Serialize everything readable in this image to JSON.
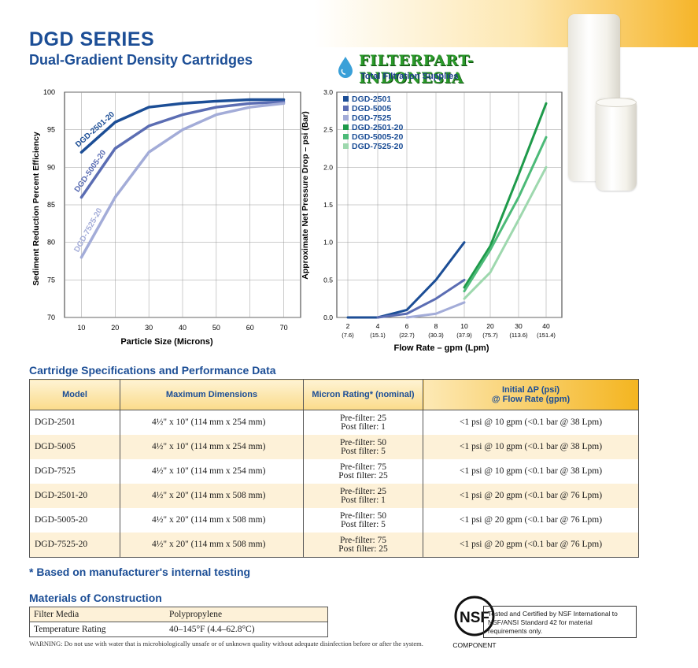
{
  "header": {
    "title": "DGD SERIES",
    "subtitle": "Dual-Gradient Density Cartridges",
    "logo_brand": "FILTERPART-INDONESIA",
    "logo_tagline": "Total Filtration Supplies"
  },
  "chart_data": [
    {
      "type": "line",
      "xlabel": "Particle Size (Microns)",
      "ylabel": "Sediment Reduction Percent Efficiency",
      "xlim": [
        5,
        75
      ],
      "ylim": [
        70,
        100
      ],
      "x_ticks": [
        "10",
        "20",
        "30",
        "40",
        "50",
        "60",
        "70"
      ],
      "y_ticks": [
        "70",
        "75",
        "80",
        "85",
        "90",
        "95",
        "100"
      ],
      "grid": true,
      "series": [
        {
          "name": "DGD-2501-20",
          "color": "#1c4e96",
          "x": [
            10,
            20,
            30,
            40,
            50,
            60,
            70
          ],
          "y": [
            92,
            96,
            98,
            98.5,
            98.8,
            99,
            99
          ]
        },
        {
          "name": "DGD-5005-20",
          "color": "#5b6db3",
          "x": [
            10,
            20,
            30,
            40,
            50,
            60,
            70
          ],
          "y": [
            86,
            92.5,
            95.5,
            97,
            98,
            98.5,
            98.7
          ]
        },
        {
          "name": "DGD-7525-20",
          "color": "#a3acd8",
          "x": [
            10,
            20,
            30,
            40,
            50,
            60,
            70
          ],
          "y": [
            78,
            86,
            92,
            95,
            97,
            98,
            98.5
          ]
        }
      ]
    },
    {
      "type": "line",
      "xlabel": "Flow Rate – gpm (Lpm)",
      "ylabel": "Approximate Net Pressure Drop – psi (Bar)",
      "x_categories": [
        "2",
        "4",
        "6",
        "8",
        "10",
        "20",
        "30",
        "40"
      ],
      "x_sub_labels": [
        "(7.6)",
        "(15.1)",
        "(22.7)",
        "(30.3)",
        "(37.9)",
        "(75.7)",
        "(113.6)",
        "(151.4)"
      ],
      "ylim": [
        0,
        3.0
      ],
      "y_ticks": [
        "0.0",
        "0.5",
        "1.0",
        "1.5",
        "2.0",
        "2.5",
        "3.0"
      ],
      "grid": true,
      "legend_position": "top-left",
      "series": [
        {
          "name": "DGD-2501",
          "color": "#1c4e96",
          "x": [
            2,
            4,
            6,
            8,
            10
          ],
          "y": [
            0,
            0,
            0.1,
            0.5,
            1.0
          ]
        },
        {
          "name": "DGD-5005",
          "color": "#5b6db3",
          "x": [
            4,
            6,
            8,
            10
          ],
          "y": [
            0,
            0.05,
            0.25,
            0.5
          ]
        },
        {
          "name": "DGD-7525",
          "color": "#a3acd8",
          "x": [
            6,
            8,
            10
          ],
          "y": [
            0,
            0.05,
            0.2
          ]
        },
        {
          "name": "DGD-2501-20",
          "color": "#1e9a4a",
          "x": [
            10,
            20,
            30,
            40
          ],
          "y": [
            0.4,
            0.95,
            1.9,
            2.85
          ]
        },
        {
          "name": "DGD-5005-20",
          "color": "#4cba78",
          "x": [
            10,
            20,
            30,
            40
          ],
          "y": [
            0.35,
            0.9,
            1.6,
            2.4
          ]
        },
        {
          "name": "DGD-7525-20",
          "color": "#9ed8ae",
          "x": [
            10,
            20,
            30,
            40
          ],
          "y": [
            0.25,
            0.6,
            1.3,
            2.0
          ]
        }
      ]
    }
  ],
  "spec_section": {
    "title": "Cartridge Specifications and Performance Data",
    "headers": [
      "Model",
      "Maximum Dimensions",
      "Micron Rating* (nominal)",
      "Initial ΔP (psi)",
      "@ Flow Rate (gpm)"
    ],
    "rows": [
      {
        "model": "DGD-2501",
        "dims": "4½\" x 10\" (114 mm x 254 mm)",
        "pre": "Pre-filter: 25",
        "post": "Post filter: 1",
        "dp": "<1 psi @ 10 gpm (<0.1 bar @ 38 Lpm)"
      },
      {
        "model": "DGD-5005",
        "dims": "4½\" x 10\" (114 mm x 254 mm)",
        "pre": "Pre-filter: 50",
        "post": "Post filter: 5",
        "dp": "<1 psi @ 10 gpm (<0.1 bar @ 38 Lpm)"
      },
      {
        "model": "DGD-7525",
        "dims": "4½\" x 10\" (114 mm x 254 mm)",
        "pre": "Pre-filter: 75",
        "post": "Post filter: 25",
        "dp": "<1 psi @ 10 gpm (<0.1 bar @ 38 Lpm)"
      },
      {
        "model": "DGD-2501-20",
        "dims": "4½\" x 20\" (114 mm x 508 mm)",
        "pre": "Pre-filter: 25",
        "post": "Post filter: 1",
        "dp": "<1 psi @ 20 gpm (<0.1 bar @ 76 Lpm)"
      },
      {
        "model": "DGD-5005-20",
        "dims": "4½\" x 20\" (114 mm x 508 mm)",
        "pre": "Pre-filter: 50",
        "post": "Post filter: 5",
        "dp": "<1 psi @ 20 gpm (<0.1 bar @ 76 Lpm)"
      },
      {
        "model": "DGD-7525-20",
        "dims": "4½\" x 20\" (114 mm x 508 mm)",
        "pre": "Pre-filter: 75",
        "post": "Post filter: 25",
        "dp": "<1 psi @ 20 gpm (<0.1 bar @ 76 Lpm)"
      }
    ]
  },
  "footnote": "* Based on manufacturer's internal testing",
  "materials": {
    "title": "Materials of Construction",
    "rows": [
      {
        "label": "Filter Media",
        "value": "Polypropylene"
      },
      {
        "label": "Temperature Rating",
        "value": "40–145°F (4.4–62.8°C)"
      }
    ]
  },
  "warning": "WARNING: Do not use with water that is microbiologically unsafe or of unknown quality without adequate disinfection before or after the system.",
  "nsf": {
    "mark": "NSF",
    "component": "COMPONENT",
    "certification": "Tested and Certified by NSF International to NSF/ANSI Standard 42 for material requirements only."
  },
  "colors": {
    "brand_blue": "#1c4e96",
    "table_header": "#fbdb8a",
    "row_shade": "#fdf1d8",
    "logo_green": "#2a9a2a"
  }
}
